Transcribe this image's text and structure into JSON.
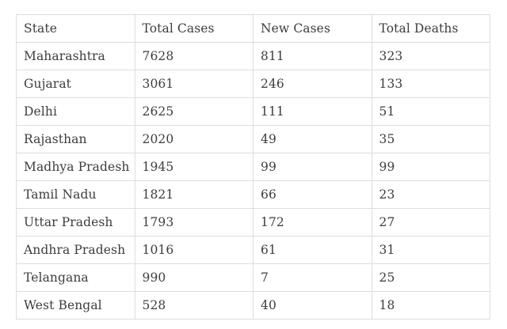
{
  "chart_data": {
    "type": "table",
    "title": "",
    "columns": [
      "State",
      "Total Cases",
      "New Cases",
      "Total Deaths"
    ],
    "rows": [
      [
        "Maharashtra",
        "7628",
        "811",
        "323"
      ],
      [
        "Gujarat",
        "3061",
        "246",
        "133"
      ],
      [
        "Delhi",
        "2625",
        "111",
        "51"
      ],
      [
        "Rajasthan",
        "2020",
        "49",
        "35"
      ],
      [
        "Madhya Pradesh",
        "1945",
        "99",
        "99"
      ],
      [
        "Tamil Nadu",
        "1821",
        "66",
        "23"
      ],
      [
        "Uttar Pradesh",
        "1793",
        "172",
        "27"
      ],
      [
        "Andhra Pradesh",
        "1016",
        "61",
        "31"
      ],
      [
        "Telangana",
        "990",
        "7",
        "25"
      ],
      [
        "West Bengal",
        "528",
        "40",
        "18"
      ]
    ]
  },
  "colors": {
    "background": "#ffffff",
    "border": "#dddddd",
    "text": "#3d3d3d"
  }
}
